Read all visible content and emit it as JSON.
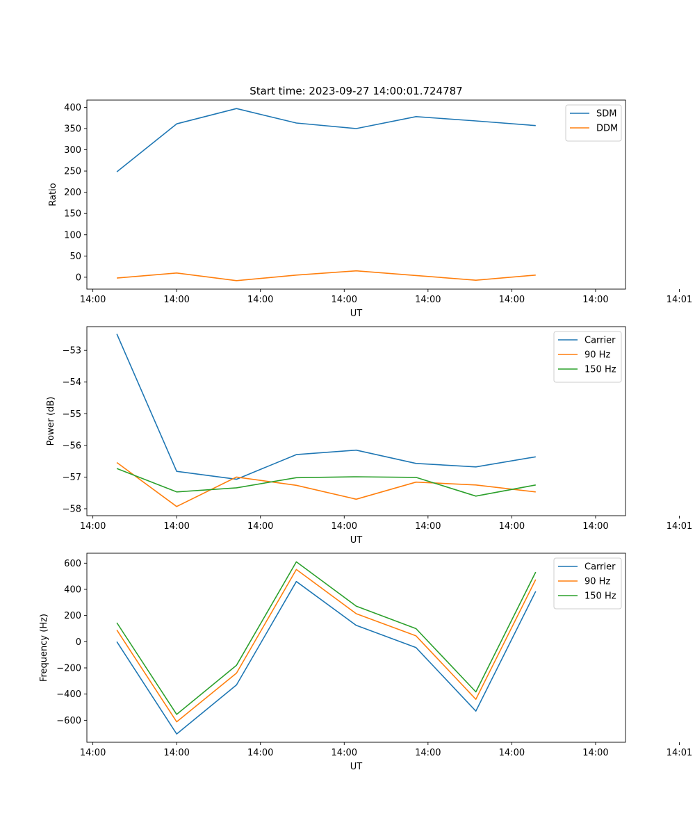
{
  "figure": {
    "title": "Start time: 2023-09-27 14:00:01.724787"
  },
  "chart_data": [
    {
      "type": "line",
      "title": "Start time: 2023-09-27 14:00:01.724787",
      "xlabel": "UT",
      "ylabel": "Ratio",
      "x": [
        0,
        1,
        2,
        3,
        4,
        5,
        6,
        7
      ],
      "xlim": [
        -0.5,
        8.5
      ],
      "x_tick_positions": [
        -0.4,
        1.0,
        2.4,
        3.8,
        5.2,
        6.6,
        8.0,
        9.4
      ],
      "x_tick_labels": [
        "14:00",
        "14:00",
        "14:00",
        "14:00",
        "14:00",
        "14:00",
        "14:00",
        "14:01"
      ],
      "ylim": [
        -28,
        417
      ],
      "y_ticks": [
        0,
        50,
        100,
        150,
        200,
        250,
        300,
        350,
        400
      ],
      "y_tick_labels": [
        "0",
        "50",
        "100",
        "150",
        "200",
        "250",
        "300",
        "350",
        "400"
      ],
      "legend_position": "top-right",
      "grid": false,
      "series": [
        {
          "name": "SDM",
          "color": "#1f77b4",
          "values": [
            248,
            361,
            397,
            363,
            350,
            378,
            368,
            357
          ]
        },
        {
          "name": "DDM",
          "color": "#ff7f0e",
          "values": [
            -2,
            10,
            -8,
            5,
            15,
            4,
            -7,
            5
          ]
        }
      ]
    },
    {
      "type": "line",
      "title": "",
      "xlabel": "UT",
      "ylabel": "Power (dB)",
      "x": [
        0,
        1,
        2,
        3,
        4,
        5,
        6,
        7
      ],
      "xlim": [
        -0.5,
        8.5
      ],
      "x_tick_positions": [
        -0.4,
        1.0,
        2.4,
        3.8,
        5.2,
        6.6,
        8.0,
        9.4
      ],
      "x_tick_labels": [
        "14:00",
        "14:00",
        "14:00",
        "14:00",
        "14:00",
        "14:00",
        "14:00",
        "14:01"
      ],
      "ylim": [
        -58.22,
        -52.25
      ],
      "y_ticks": [
        -58,
        -57,
        -56,
        -55,
        -54,
        -53
      ],
      "y_tick_labels": [
        "−58",
        "−57",
        "−56",
        "−55",
        "−54",
        "−53"
      ],
      "legend_position": "top-right",
      "grid": false,
      "series": [
        {
          "name": "Carrier",
          "color": "#1f77b4",
          "values": [
            -52.48,
            -56.82,
            -57.07,
            -56.29,
            -56.15,
            -56.57,
            -56.68,
            -56.36
          ]
        },
        {
          "name": "90 Hz",
          "color": "#ff7f0e",
          "values": [
            -56.54,
            -57.93,
            -57.0,
            -57.26,
            -57.7,
            -57.16,
            -57.25,
            -57.47
          ]
        },
        {
          "name": "150 Hz",
          "color": "#2ca02c",
          "values": [
            -56.73,
            -57.47,
            -57.34,
            -57.02,
            -56.99,
            -57.01,
            -57.6,
            -57.25
          ]
        }
      ]
    },
    {
      "type": "line",
      "title": "",
      "xlabel": "UT",
      "ylabel": "Frequency (Hz)",
      "x": [
        0,
        1,
        2,
        3,
        4,
        5,
        6,
        7
      ],
      "xlim": [
        -0.5,
        8.5
      ],
      "x_tick_positions": [
        -0.4,
        1.0,
        2.4,
        3.8,
        5.2,
        6.6,
        8.0,
        9.4
      ],
      "x_tick_labels": [
        "14:00",
        "14:00",
        "14:00",
        "14:00",
        "14:00",
        "14:00",
        "14:00",
        "14:01"
      ],
      "ylim": [
        -768,
        676
      ],
      "y_ticks": [
        -600,
        -400,
        -200,
        0,
        200,
        400,
        600
      ],
      "y_tick_labels": [
        "−600",
        "−400",
        "−200",
        "0",
        "200",
        "400",
        "600"
      ],
      "legend_position": "top-right",
      "grid": false,
      "series": [
        {
          "name": "Carrier",
          "color": "#1f77b4",
          "values": [
            0,
            -705,
            -330,
            460,
            125,
            -45,
            -530,
            385
          ]
        },
        {
          "name": "90 Hz",
          "color": "#ff7f0e",
          "values": [
            90,
            -612,
            -240,
            552,
            214,
            45,
            -440,
            475
          ]
        },
        {
          "name": "150 Hz",
          "color": "#2ca02c",
          "values": [
            145,
            -555,
            -180,
            610,
            272,
            100,
            -383,
            532
          ]
        }
      ]
    }
  ]
}
